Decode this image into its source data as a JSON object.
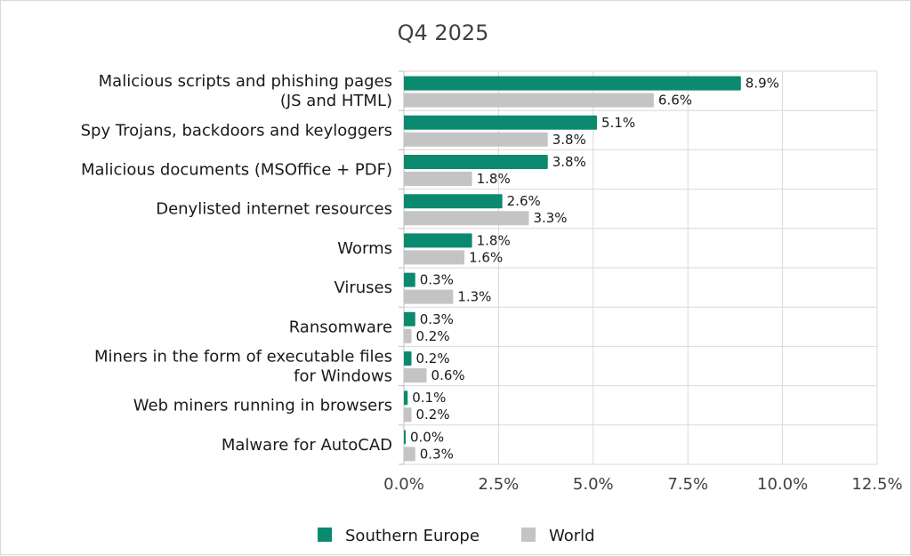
{
  "chart_data": {
    "type": "bar",
    "orientation": "horizontal",
    "title": "Q4 2025",
    "categories": [
      [
        "Malicious scripts and phishing pages",
        "(JS and HTML)"
      ],
      [
        "Spy Trojans, backdoors and keyloggers"
      ],
      [
        "Malicious documents (MSOffice + PDF)"
      ],
      [
        "Denylisted internet resources"
      ],
      [
        "Worms"
      ],
      [
        "Viruses"
      ],
      [
        "Ransomware"
      ],
      [
        "Miners in the form of executable files",
        "for Windows"
      ],
      [
        "Web miners running in browsers"
      ],
      [
        "Malware for AutoCAD"
      ]
    ],
    "series": [
      {
        "name": "Southern Europe",
        "color": "#0b8a70",
        "values": [
          8.9,
          5.1,
          3.8,
          2.6,
          1.8,
          0.3,
          0.3,
          0.2,
          0.1,
          0.0
        ]
      },
      {
        "name": "World",
        "color": "#c4c4c4",
        "values": [
          6.6,
          3.8,
          1.8,
          3.3,
          1.6,
          1.3,
          0.2,
          0.6,
          0.2,
          0.3
        ]
      }
    ],
    "value_unit": "%",
    "xlim": [
      0,
      12.5
    ],
    "xticks": [
      "0.0%",
      "2.5%",
      "5.0%",
      "7.5%",
      "10.0%",
      "12.5%"
    ],
    "xtick_values": [
      0,
      2.5,
      5,
      7.5,
      10,
      12.5
    ],
    "grid": true,
    "legend_position": "bottom"
  }
}
